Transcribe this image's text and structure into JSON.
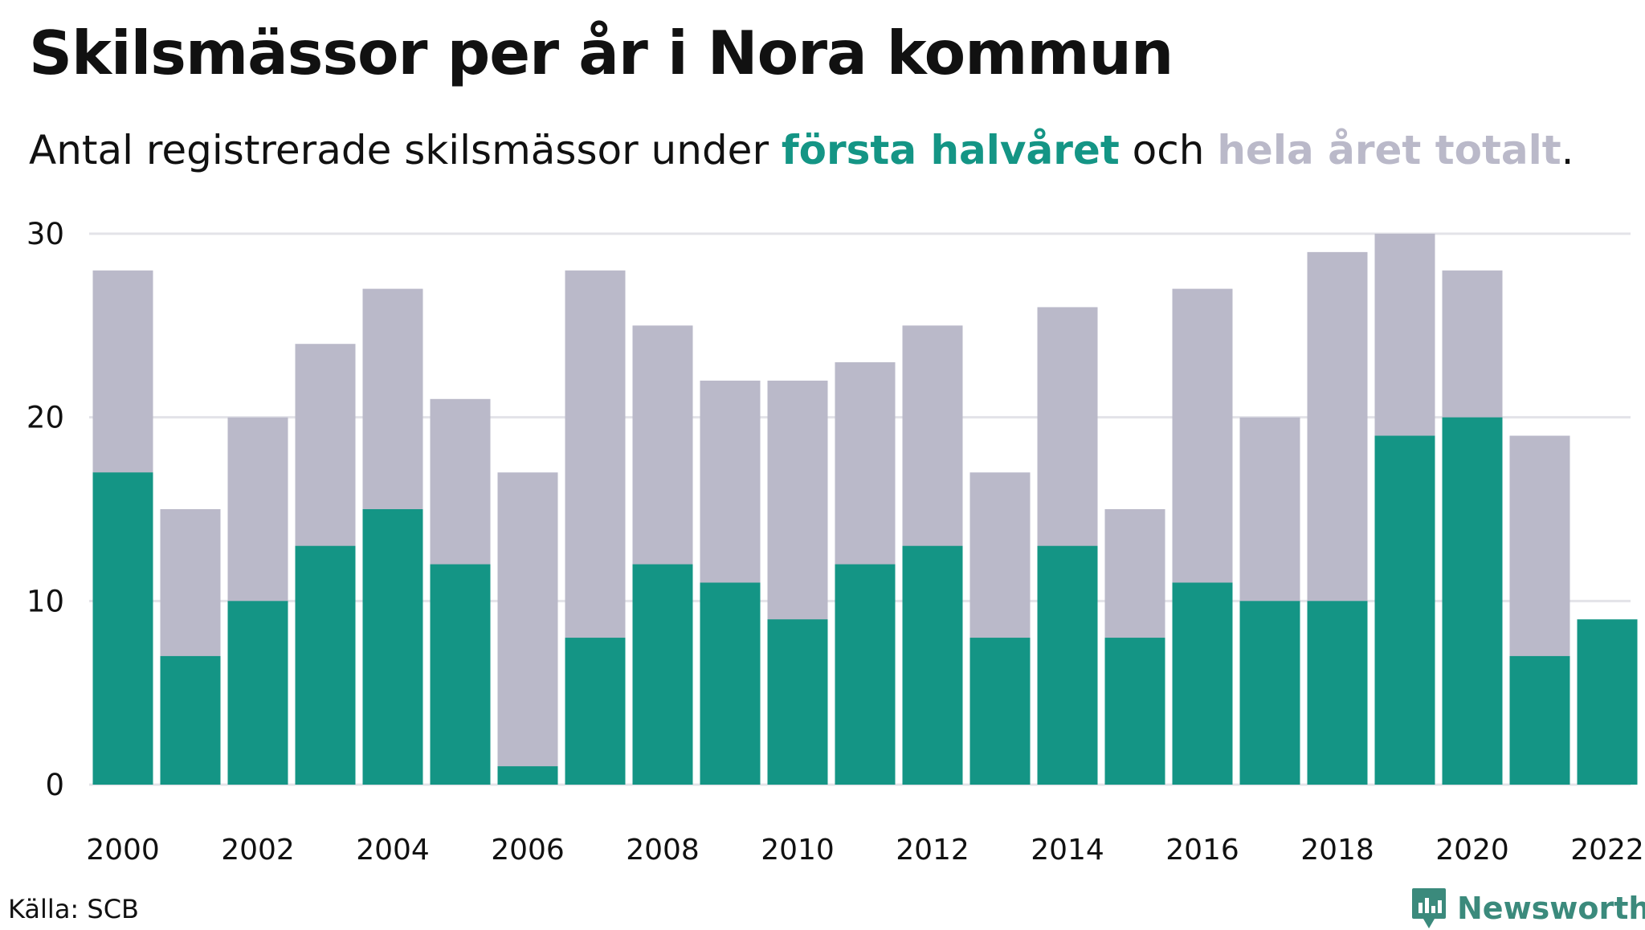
{
  "title": "Skilsmässor per år i Nora kommun",
  "subtitle": {
    "prefix": "Antal registrerade skilsmässor under ",
    "highlight_first": "första halvåret",
    "middle": " och ",
    "highlight_total": "hela året totalt",
    "suffix": "."
  },
  "colors": {
    "first_half": "#149585",
    "full_year": "#bab9c9",
    "grid": "#e3e3e8",
    "text": "#111111",
    "brand": "#3b8a7c"
  },
  "source": "Källa: SCB",
  "brand": {
    "name": "Newsworthy",
    "icon": "newsworthy-logo-icon"
  },
  "chart_data": {
    "type": "bar",
    "title": "Skilsmässor per år i Nora kommun",
    "categories": [
      2000,
      2001,
      2002,
      2003,
      2004,
      2005,
      2006,
      2007,
      2008,
      2009,
      2010,
      2011,
      2012,
      2013,
      2014,
      2015,
      2016,
      2017,
      2018,
      2019,
      2020,
      2021,
      2022
    ],
    "x_tick_labels": [
      "2000",
      "2002",
      "2004",
      "2006",
      "2008",
      "2010",
      "2012",
      "2014",
      "2016",
      "2018",
      "2020",
      "2022"
    ],
    "series": [
      {
        "name": "hela året totalt",
        "color": "#bab9c9",
        "values": [
          28,
          15,
          20,
          24,
          27,
          21,
          17,
          28,
          25,
          22,
          22,
          23,
          25,
          17,
          26,
          15,
          27,
          20,
          29,
          30,
          28,
          19,
          null
        ]
      },
      {
        "name": "första halvåret",
        "color": "#149585",
        "values": [
          17,
          7,
          10,
          13,
          15,
          12,
          1,
          8,
          12,
          11,
          9,
          12,
          13,
          8,
          13,
          8,
          11,
          10,
          10,
          19,
          20,
          7,
          9
        ]
      }
    ],
    "y_ticks": [
      0,
      10,
      20,
      30
    ],
    "ylim": [
      0,
      30
    ],
    "grid": true,
    "legend": "in subtitle"
  }
}
